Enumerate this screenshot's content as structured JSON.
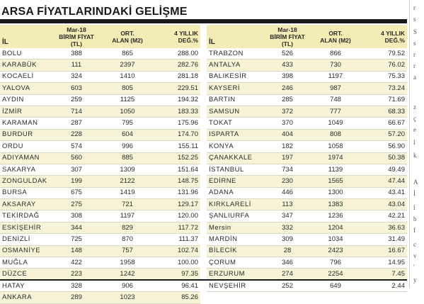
{
  "title": "ARSA FİYATLARINDAKİ GELİŞME",
  "headers": {
    "il": "İL",
    "birim_line1": "Mar-18",
    "birim_line2": "BİRİM FİYAT (TL)",
    "alan_line1": "ORT.",
    "alan_line2": "ALAN (M2)",
    "deg_line1": "4 YILLIK",
    "deg_line2": "DEĞ.%"
  },
  "left_rows": [
    {
      "il": "BOLU",
      "fiyat": "388",
      "alan": "865",
      "deg": "288.00"
    },
    {
      "il": "KARABÜK",
      "fiyat": "111",
      "alan": "2397",
      "deg": "282.76"
    },
    {
      "il": "KOCAELİ",
      "fiyat": "324",
      "alan": "1410",
      "deg": "281.18"
    },
    {
      "il": "YALOVA",
      "fiyat": "603",
      "alan": "805",
      "deg": "229.51"
    },
    {
      "il": "AYDIN",
      "fiyat": "259",
      "alan": "1125",
      "deg": "194.32"
    },
    {
      "il": "İZMİR",
      "fiyat": "714",
      "alan": "1050",
      "deg": "183.33"
    },
    {
      "il": "KARAMAN",
      "fiyat": "287",
      "alan": "795",
      "deg": "175.96"
    },
    {
      "il": "BURDUR",
      "fiyat": "228",
      "alan": "604",
      "deg": "174.70"
    },
    {
      "il": "ORDU",
      "fiyat": "574",
      "alan": "996",
      "deg": "155.11"
    },
    {
      "il": "ADIYAMAN",
      "fiyat": "560",
      "alan": "885",
      "deg": "152.25"
    },
    {
      "il": "SAKARYA",
      "fiyat": "307",
      "alan": "1309",
      "deg": "151.64"
    },
    {
      "il": "ZONGULDAK",
      "fiyat": "199",
      "alan": "2122",
      "deg": "148.75"
    },
    {
      "il": "BURSA",
      "fiyat": "675",
      "alan": "1419",
      "deg": "131.96"
    },
    {
      "il": "AKSARAY",
      "fiyat": "275",
      "alan": "721",
      "deg": "129.17"
    },
    {
      "il": "TEKİRDAĞ",
      "fiyat": "308",
      "alan": "1197",
      "deg": "120.00"
    },
    {
      "il": "ESKİŞEHİR",
      "fiyat": "344",
      "alan": "829",
      "deg": "117.72"
    },
    {
      "il": "DENİZLİ",
      "fiyat": "725",
      "alan": "870",
      "deg": "111.37"
    },
    {
      "il": "OSMANİYE",
      "fiyat": "148",
      "alan": "757",
      "deg": "102.74"
    },
    {
      "il": "MUĞLA",
      "fiyat": "422",
      "alan": "1958",
      "deg": "100.00"
    },
    {
      "il": "DÜZCE",
      "fiyat": "223",
      "alan": "1242",
      "deg": "97.35"
    },
    {
      "il": "HATAY",
      "fiyat": "328",
      "alan": "906",
      "deg": "96.41"
    },
    {
      "il": "ANKARA",
      "fiyat": "289",
      "alan": "1023",
      "deg": "85.26"
    }
  ],
  "right_rows": [
    {
      "il": "TRABZON",
      "fiyat": "526",
      "alan": "866",
      "deg": "79.52"
    },
    {
      "il": "ANTALYA",
      "fiyat": "433",
      "alan": "730",
      "deg": "76.02"
    },
    {
      "il": "BALIKESİR",
      "fiyat": "398",
      "alan": "1197",
      "deg": "75.33"
    },
    {
      "il": "KAYSERİ",
      "fiyat": "246",
      "alan": "987",
      "deg": "73.24"
    },
    {
      "il": "BARTIN",
      "fiyat": "285",
      "alan": "748",
      "deg": "71.69"
    },
    {
      "il": "SAMSUN",
      "fiyat": "372",
      "alan": "777",
      "deg": "68.33"
    },
    {
      "il": "TOKAT",
      "fiyat": "370",
      "alan": "1049",
      "deg": "66.67"
    },
    {
      "il": "ISPARTA",
      "fiyat": "404",
      "alan": "808",
      "deg": "57.20"
    },
    {
      "il": "KONYA",
      "fiyat": "182",
      "alan": "1058",
      "deg": "56.90"
    },
    {
      "il": "ÇANAKKALE",
      "fiyat": "197",
      "alan": "1974",
      "deg": "50.38"
    },
    {
      "il": "İSTANBUL",
      "fiyat": "734",
      "alan": "1139",
      "deg": "49.49"
    },
    {
      "il": "EDİRNE",
      "fiyat": "230",
      "alan": "1565",
      "deg": "47.44"
    },
    {
      "il": "ADANA",
      "fiyat": "446",
      "alan": "1300",
      "deg": "43.41"
    },
    {
      "il": "KIRKLARELİ",
      "fiyat": "113",
      "alan": "1383",
      "deg": "43.04"
    },
    {
      "il": "ŞANLIURFA",
      "fiyat": "347",
      "alan": "1236",
      "deg": "42.21"
    },
    {
      "il": "Mersin",
      "fiyat": "332",
      "alan": "1204",
      "deg": "36.63"
    },
    {
      "il": "MARDİN",
      "fiyat": "309",
      "alan": "1034",
      "deg": "31.49"
    },
    {
      "il": "BİLECİK",
      "fiyat": "28",
      "alan": "2423",
      "deg": "16.67"
    },
    {
      "il": "ÇORUM",
      "fiyat": "346",
      "alan": "796",
      "deg": "14.95"
    },
    {
      "il": "ERZURUM",
      "fiyat": "274",
      "alan": "2254",
      "deg": "7.45"
    },
    {
      "il": "NEVŞEHİR",
      "fiyat": "252",
      "alan": "649",
      "deg": "2.44"
    }
  ],
  "side_fragments": [
    "r",
    "s",
    "S",
    "s",
    "r",
    "r",
    "a",
    "z",
    "ç",
    "e",
    "l",
    "k",
    "A",
    "İ",
    "l",
    "b",
    "f",
    "c",
    "v",
    "'",
    "y"
  ],
  "colors": {
    "header_bg": "#f3ecb4",
    "alt_row_bg": "#f7f3d6",
    "rule": "#1a1a1a"
  }
}
